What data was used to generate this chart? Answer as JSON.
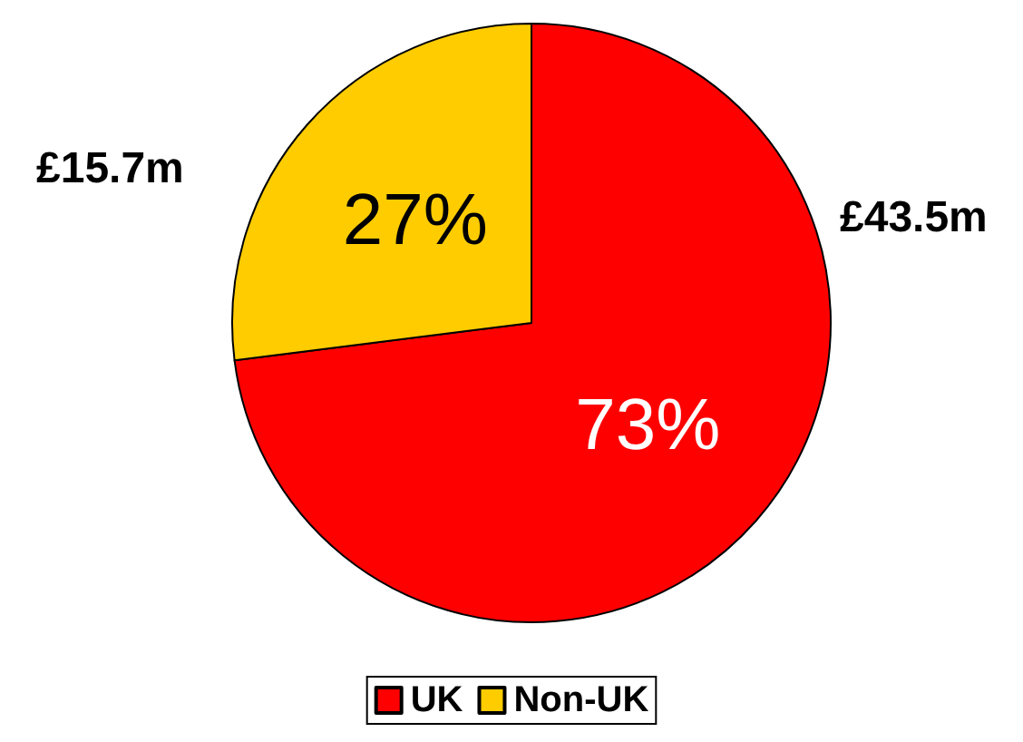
{
  "chart_data": {
    "type": "pie",
    "categories": [
      "UK",
      "Non-UK"
    ],
    "values": [
      73,
      27
    ],
    "colors": [
      "#ff0000",
      "#ffcc00"
    ],
    "value_labels": [
      "73%",
      "27%"
    ],
    "annotations": [
      {
        "text": "£43.5m",
        "x": "UK"
      },
      {
        "text": "£15.7m",
        "x": "Non-UK"
      }
    ],
    "legend": "bottom"
  }
}
